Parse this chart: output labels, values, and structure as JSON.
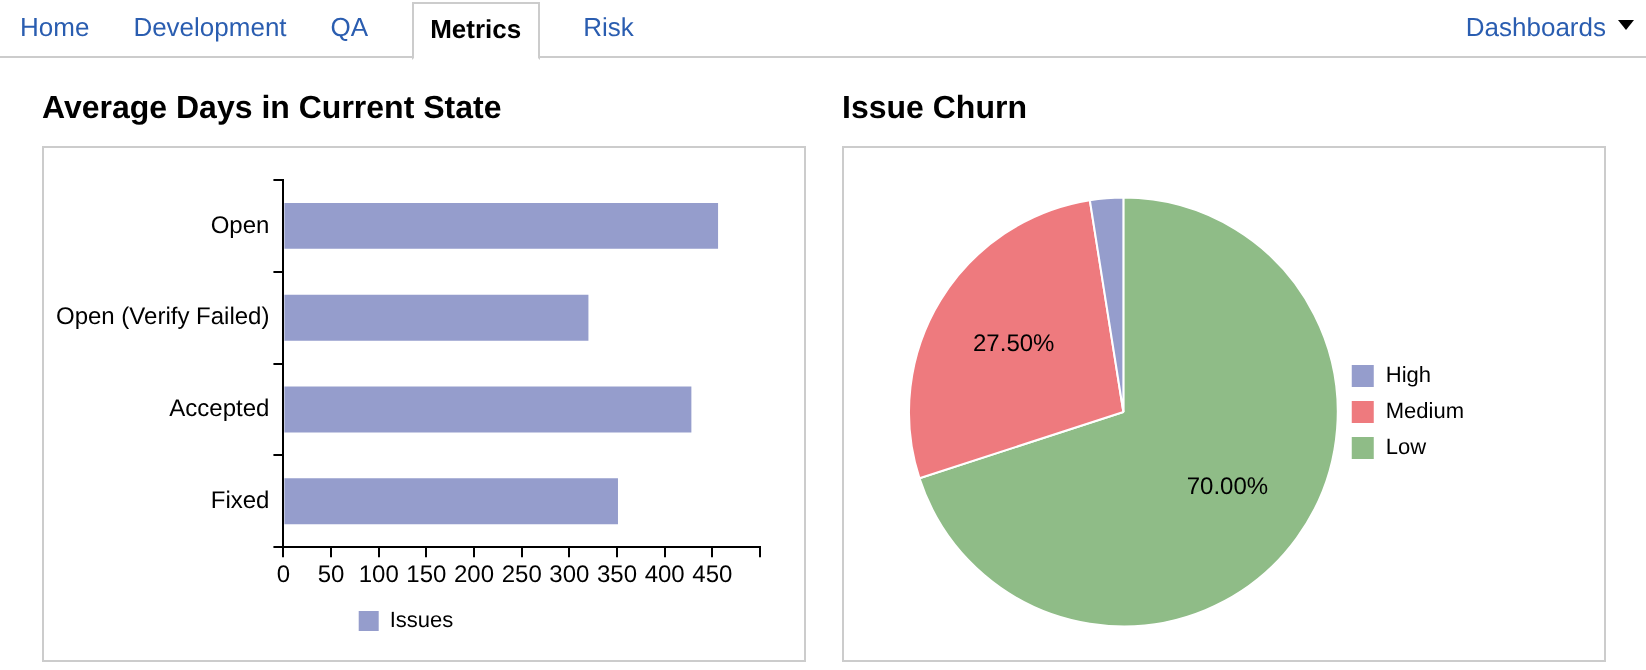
{
  "chart_data": [
    {
      "type": "bar",
      "title": "Average Days in Current State",
      "orientation": "horizontal",
      "categories": [
        "Open",
        "Open (Verify Failed)",
        "Accepted",
        "Fixed"
      ],
      "series": [
        {
          "name": "Issues",
          "color": "#959dcc",
          "values": [
            456,
            320,
            428,
            351
          ]
        }
      ],
      "xlim": [
        0,
        500
      ],
      "xticks": [
        0,
        50,
        100,
        150,
        200,
        250,
        300,
        350,
        400,
        450,
        {
          "value": 500,
          "label": null
        }
      ],
      "grid": false,
      "legend": "bottom",
      "annotations": [
        "Home",
        "Development",
        "QA",
        "Metrics",
        "Risk",
        "Dashboards"
      ]
    },
    {
      "type": "pie",
      "title": "Issue Churn",
      "categories": [
        "High",
        "Medium",
        "Low"
      ],
      "values": [
        2.5,
        27.5,
        70
      ],
      "colors": [
        "#959dcc",
        "#ee7a7e",
        "#8fbc87"
      ],
      "value_labels": [
        null,
        "27.50%",
        "70.00%"
      ],
      "legend": "right"
    }
  ]
}
